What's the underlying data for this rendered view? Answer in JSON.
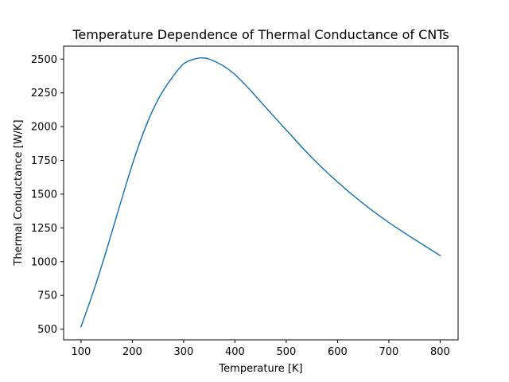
{
  "chart_data": {
    "type": "line",
    "title": "Temperature Dependence of Thermal Conductance of CNTs",
    "xlabel": "Temperature [K]",
    "ylabel": "Thermal Conductance [W/K]",
    "xlim": [
      66,
      835
    ],
    "ylim": [
      421,
      2596
    ],
    "xticks": [
      100,
      200,
      300,
      400,
      500,
      600,
      700,
      800
    ],
    "yticks": [
      500,
      750,
      1000,
      1250,
      1500,
      1750,
      2000,
      2250,
      2500
    ],
    "grid": false,
    "series": [
      {
        "color": "#1f77b4",
        "x": [
          100,
          125,
          150,
          175,
          200,
          225,
          250,
          275,
          300,
          325,
          340,
          350,
          375,
          400,
          425,
          450,
          500,
          550,
          600,
          650,
          700,
          750,
          800
        ],
        "y": [
          518,
          790,
          1090,
          1410,
          1720,
          1990,
          2200,
          2350,
          2465,
          2505,
          2508,
          2500,
          2455,
          2385,
          2290,
          2185,
          1975,
          1770,
          1590,
          1430,
          1290,
          1165,
          1045
        ]
      }
    ]
  }
}
